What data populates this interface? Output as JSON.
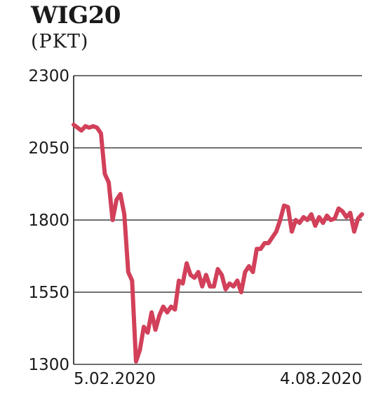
{
  "chart_data": {
    "type": "line",
    "title": "WIG20",
    "unit_label": "(PKT)",
    "ylim": [
      1300,
      2300
    ],
    "yticks": [
      "2300",
      "2050",
      "1800",
      "1550",
      "1300"
    ],
    "x_tick_labels": [
      "5.02.2020",
      "4.08.2020"
    ],
    "grid": "horizontal",
    "line_color": "#d2405a",
    "series": [
      {
        "values": [
          2130,
          2120,
          2110,
          2125,
          2120,
          2125,
          2120,
          2100,
          1960,
          1930,
          1800,
          1870,
          1890,
          1820,
          1620,
          1590,
          1310,
          1350,
          1430,
          1410,
          1480,
          1420,
          1470,
          1500,
          1480,
          1500,
          1490,
          1590,
          1580,
          1650,
          1610,
          1600,
          1620,
          1570,
          1610,
          1570,
          1570,
          1630,
          1610,
          1560,
          1580,
          1570,
          1590,
          1550,
          1620,
          1640,
          1620,
          1700,
          1700,
          1720,
          1720,
          1740,
          1760,
          1800,
          1850,
          1845,
          1760,
          1800,
          1790,
          1810,
          1800,
          1820,
          1780,
          1810,
          1790,
          1815,
          1800,
          1805,
          1840,
          1830,
          1810,
          1825,
          1760,
          1805,
          1820
        ]
      }
    ]
  }
}
